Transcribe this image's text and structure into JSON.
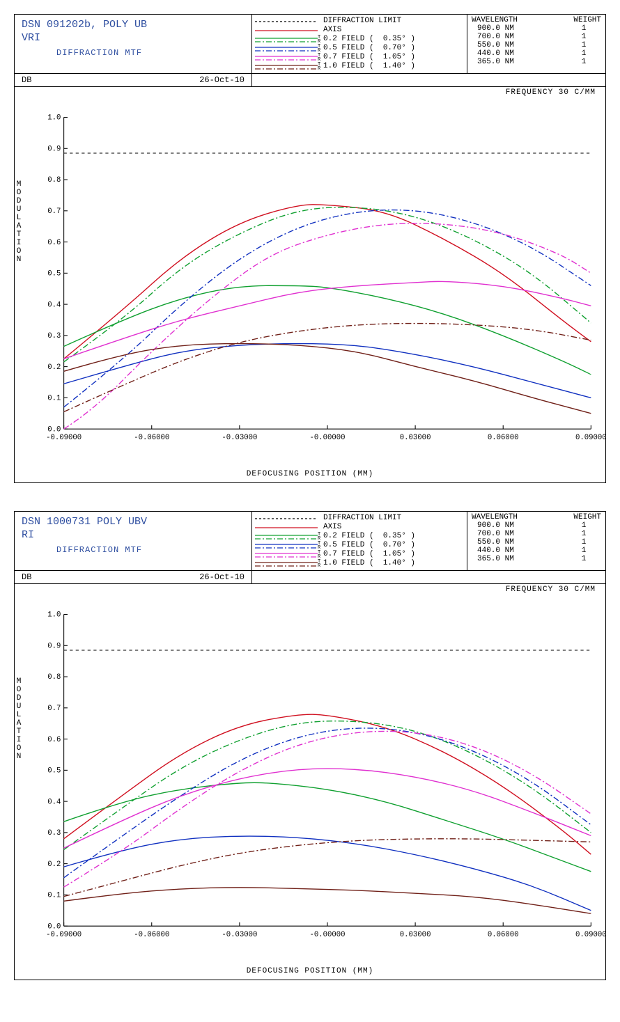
{
  "panels": [
    {
      "title_line1": "DSN 091202b, POLY UB",
      "title_line2": "VRI",
      "subtitle": "DIFFRACTION MTF",
      "db": "DB",
      "date": "26-Oct-10",
      "freq_label": "FREQUENCY   30 C/MM",
      "ylabel": "MODULATION",
      "xlabel": "DEFOCUSING POSITION (MM)",
      "xlim": [
        -0.09,
        0.09
      ],
      "ylim": [
        0.0,
        1.0
      ],
      "xticks": [
        "-0.09000",
        "-0.06000",
        "-0.03000",
        "-0.00000",
        "0.03000",
        "0.06000",
        "0.09000"
      ],
      "yticks": [
        "0.0",
        "0.1",
        "0.2",
        "0.3",
        "0.4",
        "0.5",
        "0.6",
        "0.7",
        "0.8",
        "0.9",
        "1.0"
      ],
      "axis_fontsize": 10,
      "tick_fontsize": 10,
      "diff_limit_y": 0.885,
      "legend": [
        {
          "label": "DIFFRACTION LIMIT",
          "color": "#000000",
          "dash": "3,3",
          "tr": false
        },
        {
          "label": "AXIS",
          "color": "#d01020",
          "dash": "",
          "tr": false
        },
        {
          "label": "0.2 FIELD (  0.35° )",
          "color": "#10a030",
          "dash": "8,3,2,3",
          "tr": true
        },
        {
          "label": "0.5 FIELD (  0.70° )",
          "color": "#1030c0",
          "dash": "8,3,2,3",
          "tr": true
        },
        {
          "label": "0.7 FIELD (  1.05° )",
          "color": "#e030d0",
          "dash": "8,3,2,3",
          "tr": true
        },
        {
          "label": "1.0 FIELD (  1.40° )",
          "color": "#702018",
          "dash": "8,3,2,3",
          "tr": true
        }
      ],
      "wavelengths": [
        {
          "nm": "900.0 NM",
          "w": "1"
        },
        {
          "nm": "700.0 NM",
          "w": "1"
        },
        {
          "nm": "550.0 NM",
          "w": "1"
        },
        {
          "nm": "440.0 NM",
          "w": "1"
        },
        {
          "nm": "365.0 NM",
          "w": "1"
        }
      ],
      "wl_head_l": "WAVELENGTH",
      "wl_head_r": "WEIGHT",
      "curves": [
        {
          "color": "#d01020",
          "dash": "",
          "pts": [
            [
              -0.09,
              0.225
            ],
            [
              -0.07,
              0.38
            ],
            [
              -0.05,
              0.55
            ],
            [
              -0.03,
              0.665
            ],
            [
              -0.01,
              0.72
            ],
            [
              0.0,
              0.72
            ],
            [
              0.02,
              0.7
            ],
            [
              0.04,
              0.61
            ],
            [
              0.06,
              0.5
            ],
            [
              0.08,
              0.35
            ],
            [
              0.09,
              0.28
            ]
          ]
        },
        {
          "color": "#10a030",
          "dash": "",
          "pts": [
            [
              -0.09,
              0.265
            ],
            [
              -0.07,
              0.35
            ],
            [
              -0.05,
              0.42
            ],
            [
              -0.03,
              0.46
            ],
            [
              -0.01,
              0.46
            ],
            [
              0.0,
              0.455
            ],
            [
              0.02,
              0.42
            ],
            [
              0.04,
              0.37
            ],
            [
              0.06,
              0.3
            ],
            [
              0.08,
              0.22
            ],
            [
              0.09,
              0.175
            ]
          ]
        },
        {
          "color": "#10a030",
          "dash": "8,3,2,3",
          "pts": [
            [
              -0.09,
              0.215
            ],
            [
              -0.07,
              0.35
            ],
            [
              -0.05,
              0.52
            ],
            [
              -0.03,
              0.63
            ],
            [
              -0.01,
              0.705
            ],
            [
              0.01,
              0.715
            ],
            [
              0.03,
              0.685
            ],
            [
              0.05,
              0.61
            ],
            [
              0.07,
              0.5
            ],
            [
              0.09,
              0.34
            ]
          ]
        },
        {
          "color": "#1030c0",
          "dash": "",
          "pts": [
            [
              -0.09,
              0.145
            ],
            [
              -0.07,
              0.2
            ],
            [
              -0.05,
              0.25
            ],
            [
              -0.03,
              0.27
            ],
            [
              -0.01,
              0.275
            ],
            [
              0.01,
              0.27
            ],
            [
              0.03,
              0.24
            ],
            [
              0.05,
              0.2
            ],
            [
              0.07,
              0.15
            ],
            [
              0.09,
              0.1
            ]
          ]
        },
        {
          "color": "#1030c0",
          "dash": "8,3,2,3",
          "pts": [
            [
              -0.09,
              0.07
            ],
            [
              -0.07,
              0.22
            ],
            [
              -0.05,
              0.4
            ],
            [
              -0.03,
              0.55
            ],
            [
              -0.01,
              0.65
            ],
            [
              0.01,
              0.7
            ],
            [
              0.03,
              0.705
            ],
            [
              0.05,
              0.665
            ],
            [
              0.07,
              0.585
            ],
            [
              0.09,
              0.46
            ]
          ]
        },
        {
          "color": "#e030d0",
          "dash": "",
          "pts": [
            [
              -0.09,
              0.225
            ],
            [
              -0.07,
              0.29
            ],
            [
              -0.05,
              0.35
            ],
            [
              -0.03,
              0.395
            ],
            [
              -0.01,
              0.44
            ],
            [
              0.01,
              0.46
            ],
            [
              0.03,
              0.47
            ],
            [
              0.04,
              0.475
            ],
            [
              0.06,
              0.46
            ],
            [
              0.08,
              0.42
            ],
            [
              0.09,
              0.395
            ]
          ]
        },
        {
          "color": "#e030d0",
          "dash": "8,3,2,3",
          "pts": [
            [
              -0.09,
              0.0
            ],
            [
              -0.08,
              0.06
            ],
            [
              -0.06,
              0.25
            ],
            [
              -0.04,
              0.42
            ],
            [
              -0.02,
              0.56
            ],
            [
              0.0,
              0.625
            ],
            [
              0.02,
              0.66
            ],
            [
              0.04,
              0.66
            ],
            [
              0.06,
              0.63
            ],
            [
              0.08,
              0.56
            ],
            [
              0.09,
              0.5
            ]
          ]
        },
        {
          "color": "#702018",
          "dash": "",
          "pts": [
            [
              -0.09,
              0.185
            ],
            [
              -0.07,
              0.24
            ],
            [
              -0.05,
              0.27
            ],
            [
              -0.03,
              0.275
            ],
            [
              -0.01,
              0.27
            ],
            [
              0.01,
              0.25
            ],
            [
              0.03,
              0.2
            ],
            [
              0.05,
              0.155
            ],
            [
              0.07,
              0.1
            ],
            [
              0.09,
              0.05
            ]
          ]
        },
        {
          "color": "#702018",
          "dash": "8,3,2,3",
          "pts": [
            [
              -0.09,
              0.055
            ],
            [
              -0.07,
              0.14
            ],
            [
              -0.05,
              0.22
            ],
            [
              -0.03,
              0.28
            ],
            [
              -0.01,
              0.315
            ],
            [
              0.01,
              0.335
            ],
            [
              0.03,
              0.34
            ],
            [
              0.05,
              0.335
            ],
            [
              0.07,
              0.32
            ],
            [
              0.09,
              0.285
            ]
          ]
        }
      ]
    },
    {
      "title_line1": "DSN 1000731 POLY UBV",
      "title_line2": "RI",
      "subtitle": "DIFFRACTION MTF",
      "db": "DB",
      "date": "26-Oct-10",
      "freq_label": "FREQUENCY   30 C/MM",
      "ylabel": "MODULATION",
      "xlabel": "DEFOCUSING POSITION (MM)",
      "xlim": [
        -0.09,
        0.09
      ],
      "ylim": [
        0.0,
        1.0
      ],
      "xticks": [
        "-0.09000",
        "-0.06000",
        "-0.03000",
        "-0.00000",
        "0.03000",
        "0.06000",
        "0.09000"
      ],
      "yticks": [
        "0.0",
        "0.1",
        "0.2",
        "0.3",
        "0.4",
        "0.5",
        "0.6",
        "0.7",
        "0.8",
        "0.9",
        "1.0"
      ],
      "axis_fontsize": 10,
      "tick_fontsize": 10,
      "diff_limit_y": 0.885,
      "legend": [
        {
          "label": "DIFFRACTION LIMIT",
          "color": "#000000",
          "dash": "3,3",
          "tr": false
        },
        {
          "label": "AXIS",
          "color": "#d01020",
          "dash": "",
          "tr": false
        },
        {
          "label": "0.2 FIELD (  0.35° )",
          "color": "#10a030",
          "dash": "8,3,2,3",
          "tr": true
        },
        {
          "label": "0.5 FIELD (  0.70° )",
          "color": "#1030c0",
          "dash": "8,3,2,3",
          "tr": true
        },
        {
          "label": "0.7 FIELD (  1.05° )",
          "color": "#e030d0",
          "dash": "8,3,2,3",
          "tr": true
        },
        {
          "label": "1.0 FIELD (  1.40° )",
          "color": "#702018",
          "dash": "8,3,2,3",
          "tr": true
        }
      ],
      "wavelengths": [
        {
          "nm": "900.0 NM",
          "w": "1"
        },
        {
          "nm": "700.0 NM",
          "w": "1"
        },
        {
          "nm": "550.0 NM",
          "w": "1"
        },
        {
          "nm": "440.0 NM",
          "w": "1"
        },
        {
          "nm": "365.0 NM",
          "w": "1"
        }
      ],
      "wl_head_l": "WAVELENGTH",
      "wl_head_r": "WEIGHT",
      "curves": [
        {
          "color": "#d01020",
          "dash": "",
          "pts": [
            [
              -0.09,
              0.28
            ],
            [
              -0.07,
              0.42
            ],
            [
              -0.05,
              0.555
            ],
            [
              -0.03,
              0.645
            ],
            [
              -0.01,
              0.68
            ],
            [
              0.0,
              0.678
            ],
            [
              0.02,
              0.64
            ],
            [
              0.04,
              0.56
            ],
            [
              0.06,
              0.45
            ],
            [
              0.08,
              0.31
            ],
            [
              0.09,
              0.23
            ]
          ]
        },
        {
          "color": "#10a030",
          "dash": "",
          "pts": [
            [
              -0.09,
              0.335
            ],
            [
              -0.07,
              0.4
            ],
            [
              -0.05,
              0.44
            ],
            [
              -0.03,
              0.46
            ],
            [
              -0.02,
              0.46
            ],
            [
              0.0,
              0.44
            ],
            [
              0.02,
              0.4
            ],
            [
              0.04,
              0.34
            ],
            [
              0.06,
              0.28
            ],
            [
              0.08,
              0.21
            ],
            [
              0.09,
              0.175
            ]
          ]
        },
        {
          "color": "#10a030",
          "dash": "8,3,2,3",
          "pts": [
            [
              -0.09,
              0.245
            ],
            [
              -0.07,
              0.38
            ],
            [
              -0.05,
              0.51
            ],
            [
              -0.03,
              0.6
            ],
            [
              -0.01,
              0.655
            ],
            [
              0.01,
              0.66
            ],
            [
              0.03,
              0.63
            ],
            [
              0.05,
              0.555
            ],
            [
              0.07,
              0.445
            ],
            [
              0.09,
              0.3
            ]
          ]
        },
        {
          "color": "#1030c0",
          "dash": "",
          "pts": [
            [
              -0.09,
              0.19
            ],
            [
              -0.07,
              0.245
            ],
            [
              -0.05,
              0.28
            ],
            [
              -0.03,
              0.29
            ],
            [
              -0.01,
              0.285
            ],
            [
              0.01,
              0.265
            ],
            [
              0.03,
              0.23
            ],
            [
              0.05,
              0.185
            ],
            [
              0.07,
              0.13
            ],
            [
              0.09,
              0.05
            ]
          ]
        },
        {
          "color": "#1030c0",
          "dash": "8,3,2,3",
          "pts": [
            [
              -0.09,
              0.155
            ],
            [
              -0.07,
              0.29
            ],
            [
              -0.05,
              0.42
            ],
            [
              -0.03,
              0.535
            ],
            [
              -0.01,
              0.61
            ],
            [
              0.01,
              0.64
            ],
            [
              0.03,
              0.625
            ],
            [
              0.05,
              0.565
            ],
            [
              0.07,
              0.465
            ],
            [
              0.09,
              0.325
            ]
          ]
        },
        {
          "color": "#e030d0",
          "dash": "",
          "pts": [
            [
              -0.09,
              0.25
            ],
            [
              -0.07,
              0.34
            ],
            [
              -0.05,
              0.42
            ],
            [
              -0.03,
              0.475
            ],
            [
              -0.01,
              0.505
            ],
            [
              0.01,
              0.505
            ],
            [
              0.03,
              0.48
            ],
            [
              0.05,
              0.435
            ],
            [
              0.07,
              0.365
            ],
            [
              0.09,
              0.29
            ]
          ]
        },
        {
          "color": "#e030d0",
          "dash": "8,3,2,3",
          "pts": [
            [
              -0.09,
              0.125
            ],
            [
              -0.07,
              0.24
            ],
            [
              -0.05,
              0.38
            ],
            [
              -0.03,
              0.5
            ],
            [
              -0.01,
              0.585
            ],
            [
              0.01,
              0.625
            ],
            [
              0.03,
              0.625
            ],
            [
              0.05,
              0.58
            ],
            [
              0.07,
              0.49
            ],
            [
              0.09,
              0.36
            ]
          ]
        },
        {
          "color": "#702018",
          "dash": "",
          "pts": [
            [
              -0.09,
              0.08
            ],
            [
              -0.07,
              0.105
            ],
            [
              -0.05,
              0.12
            ],
            [
              -0.03,
              0.125
            ],
            [
              -0.01,
              0.12
            ],
            [
              0.01,
              0.115
            ],
            [
              0.03,
              0.105
            ],
            [
              0.05,
              0.095
            ],
            [
              0.07,
              0.07
            ],
            [
              0.09,
              0.04
            ]
          ]
        },
        {
          "color": "#702018",
          "dash": "8,3,2,3",
          "pts": [
            [
              -0.09,
              0.095
            ],
            [
              -0.07,
              0.145
            ],
            [
              -0.05,
              0.195
            ],
            [
              -0.03,
              0.235
            ],
            [
              -0.01,
              0.26
            ],
            [
              0.01,
              0.275
            ],
            [
              0.03,
              0.28
            ],
            [
              0.05,
              0.28
            ],
            [
              0.07,
              0.275
            ],
            [
              0.09,
              0.27
            ]
          ]
        }
      ]
    }
  ]
}
